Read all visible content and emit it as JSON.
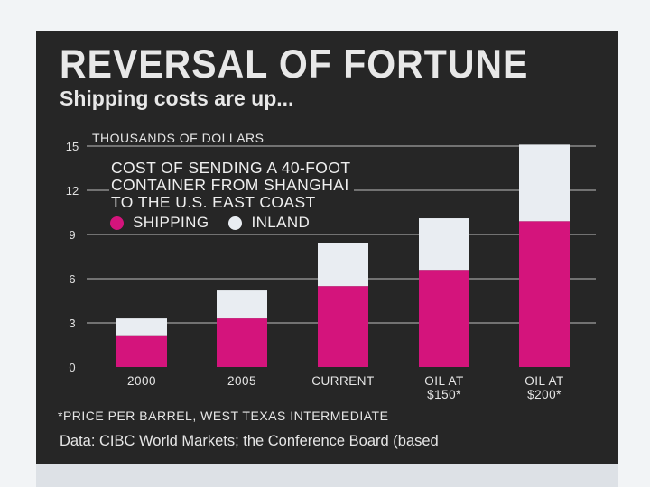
{
  "chart_data": {
    "type": "bar",
    "stacked": true,
    "title": "REVERSAL OF FORTUNE",
    "subtitle": "Shipping costs are up...",
    "ylabel": "THOUSANDS OF DOLLARS",
    "description_lines": [
      "COST OF SENDING A 40-FOOT",
      "CONTAINER FROM SHANGHAI",
      "TO THE U.S. EAST COAST"
    ],
    "categories": [
      [
        "2000"
      ],
      [
        "2005"
      ],
      [
        "CURRENT"
      ],
      [
        "OIL AT",
        "$150*"
      ],
      [
        "OIL AT",
        "$200*"
      ]
    ],
    "series": [
      {
        "name": "SHIPPING",
        "color": "#d4147c",
        "values": [
          2.1,
          3.3,
          5.5,
          6.6,
          9.9
        ]
      },
      {
        "name": "INLAND",
        "color": "#e9edf2",
        "values": [
          1.2,
          1.9,
          2.9,
          3.5,
          5.2
        ]
      }
    ],
    "ylim": [
      0,
      15
    ],
    "yticks": [
      0,
      3,
      6,
      9,
      12,
      15
    ],
    "grid": true,
    "legend_position": "top-left",
    "footnote": "*PRICE PER BARREL, WEST TEXAS INTERMEDIATE",
    "source": "Data: CIBC World Markets; the Conference Board (based"
  }
}
